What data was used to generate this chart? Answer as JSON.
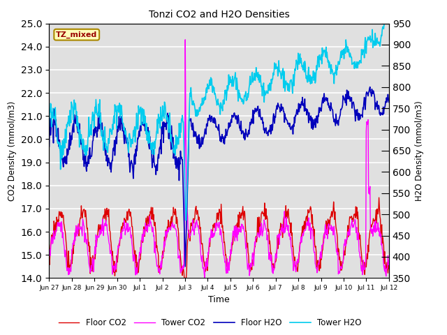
{
  "title": "Tonzi CO2 and H2O Densities",
  "xlabel": "Time",
  "ylabel_left": "CO2 Density (mmol/m3)",
  "ylabel_right": "H2O Density (mmol/m3)",
  "ylim_left": [
    14.0,
    25.0
  ],
  "ylim_right": [
    350,
    950
  ],
  "yticks_left": [
    14.0,
    15.0,
    16.0,
    17.0,
    18.0,
    19.0,
    20.0,
    21.0,
    22.0,
    23.0,
    24.0,
    25.0
  ],
  "yticks_right": [
    350,
    400,
    450,
    500,
    550,
    600,
    650,
    700,
    750,
    800,
    850,
    900,
    950
  ],
  "xtick_labels": [
    "Jun 27",
    "Jun 28",
    "Jun 29",
    "Jun 30",
    "Jul 1",
    "Jul 2",
    "Jul 3",
    "Jul 4",
    "Jul 5",
    "Jul 6",
    "Jul 7",
    "Jul 8",
    "Jul 9",
    "Jul 10",
    "Jul 11",
    "Jul 12"
  ],
  "annotation_text": "TZ_mixed",
  "annotation_box_facecolor": "#FFFFBB",
  "annotation_box_edgecolor": "#AA8800",
  "annotation_text_color": "#990000",
  "line_colors": {
    "floor_co2": "#DD0000",
    "tower_co2": "#FF00FF",
    "floor_h2o": "#0000BB",
    "tower_h2o": "#00CCEE"
  },
  "line_widths": {
    "floor_co2": 1.0,
    "tower_co2": 1.0,
    "floor_h2o": 1.2,
    "tower_h2o": 1.2
  },
  "legend_labels": [
    "Floor CO2",
    "Tower CO2",
    "Floor H2O",
    "Tower H2O"
  ],
  "background_color": "#E0E0E0",
  "grid_color": "#FFFFFF",
  "n_points": 720
}
